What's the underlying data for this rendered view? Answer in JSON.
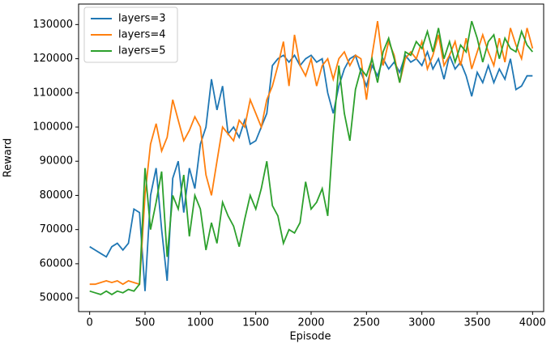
{
  "chart_data": {
    "type": "line",
    "xlabel": "Episode",
    "ylabel": "Reward",
    "x": [
      0,
      50,
      100,
      150,
      200,
      250,
      300,
      350,
      400,
      450,
      500,
      550,
      600,
      650,
      700,
      750,
      800,
      850,
      900,
      950,
      1000,
      1050,
      1100,
      1150,
      1200,
      1250,
      1300,
      1350,
      1400,
      1450,
      1500,
      1550,
      1600,
      1650,
      1700,
      1750,
      1800,
      1850,
      1900,
      1950,
      2000,
      2050,
      2100,
      2150,
      2200,
      2250,
      2300,
      2350,
      2400,
      2450,
      2500,
      2550,
      2600,
      2650,
      2700,
      2750,
      2800,
      2850,
      2900,
      2950,
      3000,
      3050,
      3100,
      3150,
      3200,
      3250,
      3300,
      3350,
      3400,
      3450,
      3500,
      3550,
      3600,
      3650,
      3700,
      3750,
      3800,
      3850,
      3900,
      3950,
      4000
    ],
    "series": [
      {
        "name": "layers=3",
        "color": "#1f77b4",
        "values": [
          65000,
          64000,
          63000,
          62000,
          65000,
          66000,
          64000,
          66000,
          76000,
          75000,
          52000,
          80000,
          88000,
          70000,
          55000,
          85000,
          90000,
          75000,
          88000,
          82000,
          95000,
          100000,
          114000,
          105000,
          112000,
          98000,
          100000,
          97000,
          102000,
          95000,
          96000,
          100000,
          104000,
          118000,
          120000,
          121000,
          119000,
          121000,
          118000,
          120000,
          121000,
          119000,
          120000,
          110000,
          104000,
          112000,
          117000,
          120000,
          121000,
          116000,
          112000,
          118000,
          115000,
          120000,
          117000,
          119000,
          116000,
          121000,
          119000,
          120000,
          118000,
          122000,
          117000,
          120000,
          114000,
          121000,
          117000,
          119000,
          115000,
          109000,
          116000,
          113000,
          118000,
          113000,
          117000,
          114000,
          120000,
          111000,
          112000,
          115000,
          115000
        ]
      },
      {
        "name": "layers=4",
        "color": "#ff7f0e",
        "values": [
          54000,
          54000,
          54500,
          55000,
          54500,
          55000,
          54000,
          55000,
          54500,
          54000,
          80000,
          95000,
          101000,
          93000,
          97000,
          108000,
          102000,
          96000,
          99000,
          103000,
          100000,
          86000,
          80000,
          90000,
          100000,
          98000,
          96000,
          102000,
          100000,
          108000,
          104000,
          100000,
          108000,
          112000,
          118000,
          125000,
          112000,
          127000,
          118000,
          115000,
          120000,
          112000,
          118000,
          120000,
          114000,
          120000,
          122000,
          118000,
          121000,
          120000,
          108000,
          121000,
          131000,
          118000,
          125000,
          121000,
          113000,
          120000,
          122000,
          120000,
          125000,
          117000,
          121000,
          127000,
          118000,
          121000,
          125000,
          118000,
          126000,
          117000,
          122000,
          127000,
          122000,
          118000,
          126000,
          119000,
          129000,
          124000,
          120000,
          129000,
          123000
        ]
      },
      {
        "name": "layers=5",
        "color": "#2ca02c",
        "values": [
          52000,
          51500,
          51000,
          52000,
          51000,
          52000,
          51500,
          52500,
          52000,
          54000,
          88000,
          70000,
          78000,
          87000,
          62000,
          80000,
          76000,
          86000,
          68000,
          80000,
          76000,
          64000,
          72000,
          66000,
          78000,
          74000,
          71000,
          65000,
          73000,
          80000,
          76000,
          82000,
          90000,
          77000,
          74000,
          66000,
          70000,
          69000,
          72000,
          84000,
          76000,
          78000,
          82000,
          74000,
          98000,
          118000,
          104000,
          96000,
          111000,
          117000,
          115000,
          120000,
          113000,
          122000,
          126000,
          120000,
          113000,
          122000,
          121000,
          125000,
          123000,
          128000,
          122000,
          129000,
          120000,
          125000,
          119000,
          124000,
          122000,
          131000,
          126000,
          119000,
          125000,
          127000,
          120000,
          126000,
          123000,
          122000,
          128000,
          124000,
          122000
        ]
      }
    ],
    "xlim": [
      -100,
      4100
    ],
    "xticks": [
      0,
      500,
      1000,
      1500,
      2000,
      2500,
      3000,
      3500,
      4000
    ],
    "ylim": [
      46000,
      136000
    ],
    "yticks": [
      50000,
      60000,
      70000,
      80000,
      90000,
      100000,
      110000,
      120000,
      130000
    ],
    "legend": "upper left"
  }
}
